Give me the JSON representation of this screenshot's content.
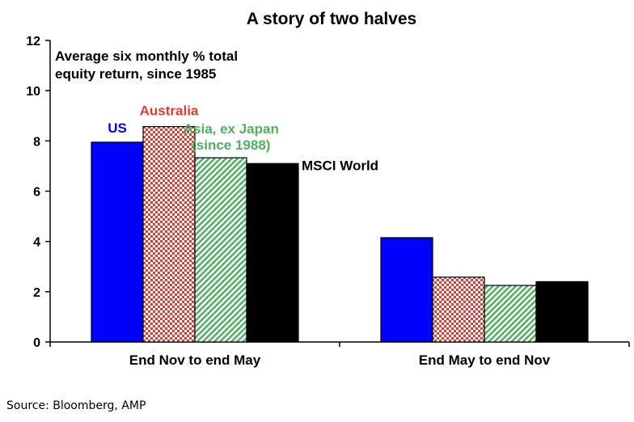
{
  "chart_data": {
    "type": "bar",
    "title": "A story of two halves",
    "note_lines": [
      "Average six monthly % total",
      "equity return, since 1985"
    ],
    "categories": [
      "End Nov to end May",
      "End May to end Nov"
    ],
    "ylim": [
      0,
      12
    ],
    "yticks": [
      0,
      2,
      4,
      6,
      8,
      10,
      12
    ],
    "grid": false,
    "series": [
      {
        "name": "US",
        "label_lines": [
          "US"
        ],
        "color": "#0000ff",
        "pattern": "solid",
        "values": [
          7.95,
          4.15
        ]
      },
      {
        "name": "Australia",
        "label_lines": [
          "Australia"
        ],
        "color": "#e8392e",
        "pattern": "checker",
        "values": [
          8.57,
          2.58
        ]
      },
      {
        "name": "Asia, ex Japan (since 1988)",
        "label_lines": [
          "Asia, ex Japan",
          "(since 1988)"
        ],
        "color": "#4fb060",
        "pattern": "diagonal",
        "values": [
          7.33,
          2.25
        ]
      },
      {
        "name": "MSCI World",
        "label_lines": [
          "MSCI World"
        ],
        "color": "#000000",
        "pattern": "solid",
        "values": [
          7.1,
          2.4
        ]
      }
    ]
  },
  "source": "Source: Bloomberg, AMP"
}
